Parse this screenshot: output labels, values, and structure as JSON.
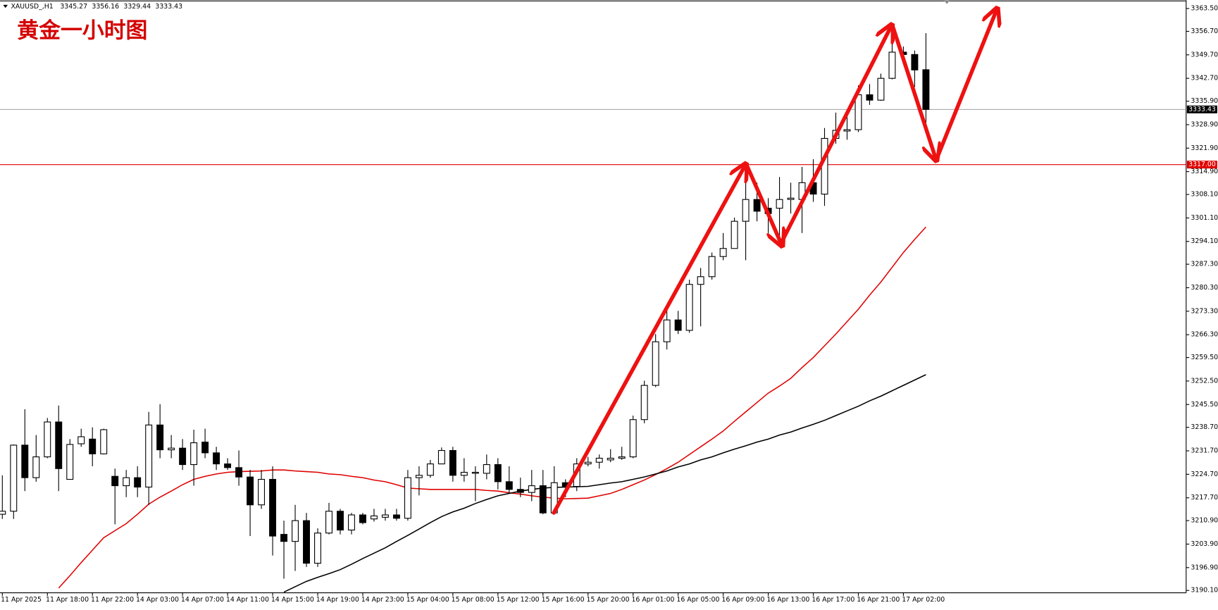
{
  "chart_data": {
    "type": "candlestick",
    "title": "黄金一小时图",
    "symbol": "XAUUSD_,H1",
    "up_color": "#ffffff",
    "down_color": "#000000",
    "grid": false,
    "categories": [
      "11 Apr 2025",
      null,
      null,
      null,
      "11 Apr 18:00",
      null,
      null,
      null,
      "11 Apr 22:00",
      null,
      null,
      null,
      "14 Apr 03:00",
      null,
      null,
      null,
      "14 Apr 07:00",
      null,
      null,
      null,
      "14 Apr 11:00",
      null,
      null,
      null,
      "14 Apr 15:00",
      null,
      null,
      null,
      "14 Apr 19:00",
      null,
      null,
      null,
      "14 Apr 23:00",
      null,
      null,
      null,
      "15 Apr 04:00",
      null,
      null,
      null,
      "15 Apr 08:00",
      null,
      null,
      null,
      "15 Apr 12:00",
      null,
      null,
      null,
      "15 Apr 16:00",
      null,
      null,
      null,
      "15 Apr 20:00",
      null,
      null,
      null,
      "16 Apr 01:00",
      null,
      null,
      null,
      "16 Apr 05:00",
      null,
      null,
      null,
      "16 Apr 09:00",
      null,
      null,
      null,
      "16 Apr 13:00",
      null,
      null,
      null,
      "16 Apr 17:00",
      null,
      null,
      null,
      "16 Apr 21:00",
      null,
      null,
      null,
      "17 Apr 02:00",
      null,
      null
    ],
    "open": [
      3212.8,
      3213.7,
      3233.4,
      3223.7,
      3229.9,
      3240.3,
      3223.2,
      3233.8,
      3235.2,
      3230.8,
      3224.1,
      3221.3,
      3223.7,
      3220.9,
      3239.4,
      3232.0,
      3232.5,
      3227.6,
      3234.3,
      3231.1,
      3227.8,
      3226.7,
      3223.9,
      3215.6,
      3223.2,
      3206.8,
      3204.7,
      3210.9,
      3198.2,
      3207.2,
      3213.7,
      3208.1,
      3212.6,
      3211.4,
      3211.9,
      3212.6,
      3211.6,
      3223.7,
      3224.4,
      3227.8,
      3231.8,
      3224.4,
      3225.0,
      3225.0,
      3227.6,
      3222.5,
      3220.2,
      3219.3,
      3221.3,
      3213.2,
      3222.2,
      3221.1,
      3227.8,
      3228.3,
      3229.0,
      3229.5,
      3229.9,
      3241.0,
      3251.2,
      3264.2,
      3270.7,
      3267.6,
      3281.3,
      3283.6,
      3289.6,
      3292.0,
      3300.1,
      3306.6,
      3304.0,
      3304.0,
      3306.6,
      3306.6,
      3311.6,
      3308.2,
      3324.8,
      3327.0,
      3327.4,
      3337.8,
      3336.2,
      3342.7,
      3350.5,
      3349.8,
      3345.27
    ],
    "high": [
      3224.4,
      3233.6,
      3244.1,
      3236.4,
      3241.5,
      3245.2,
      3235.2,
      3238.3,
      3238.7,
      3238.3,
      3226.4,
      3226.0,
      3227.1,
      3243.3,
      3245.6,
      3236.4,
      3235.2,
      3238.0,
      3238.3,
      3232.9,
      3229.5,
      3231.8,
      3226.0,
      3226.0,
      3227.1,
      3210.9,
      3215.6,
      3213.2,
      3208.6,
      3216.2,
      3214.4,
      3213.2,
      3213.2,
      3214.4,
      3214.4,
      3214.4,
      3226.0,
      3227.1,
      3229.0,
      3232.7,
      3232.9,
      3229.5,
      3227.1,
      3230.6,
      3229.5,
      3227.1,
      3223.7,
      3226.0,
      3226.0,
      3227.1,
      3223.2,
      3229.5,
      3229.9,
      3230.6,
      3232.2,
      3232.9,
      3242.2,
      3252.6,
      3266.5,
      3273.4,
      3273.4,
      3282.7,
      3286.2,
      3290.8,
      3296.6,
      3301.2,
      3312.8,
      3311.6,
      3307.0,
      3313.3,
      3311.6,
      3316.3,
      3318.6,
      3327.9,
      3332.5,
      3331.4,
      3340.6,
      3341.0,
      3344.1,
      3355.6,
      3352.2,
      3351.0,
      3356.16
    ],
    "low": [
      3211.4,
      3211.4,
      3219.7,
      3222.5,
      3229.5,
      3219.7,
      3223.2,
      3232.9,
      3227.1,
      3230.6,
      3209.8,
      3217.9,
      3217.9,
      3215.6,
      3229.5,
      3229.5,
      3226.0,
      3221.3,
      3229.5,
      3226.0,
      3226.0,
      3221.3,
      3206.3,
      3214.4,
      3200.5,
      3193.6,
      3195.9,
      3197.1,
      3197.1,
      3206.8,
      3206.8,
      3206.8,
      3209.8,
      3210.6,
      3210.9,
      3210.9,
      3210.9,
      3218.4,
      3223.7,
      3227.8,
      3222.5,
      3222.5,
      3216.7,
      3223.2,
      3220.2,
      3219.0,
      3217.9,
      3216.7,
      3212.8,
      3213.0,
      3217.9,
      3219.7,
      3227.1,
      3226.4,
      3228.3,
      3229.0,
      3229.5,
      3239.9,
      3250.7,
      3261.9,
      3266.5,
      3266.9,
      3268.8,
      3282.7,
      3288.5,
      3292.0,
      3288.5,
      3300.1,
      3296.6,
      3294.3,
      3302.4,
      3296.6,
      3305.9,
      3304.7,
      3323.2,
      3324.4,
      3326.7,
      3334.8,
      3336.0,
      3342.4,
      3349.4,
      3340.1,
      3329.44
    ],
    "close": [
      3213.7,
      3233.4,
      3223.7,
      3229.9,
      3240.3,
      3226.4,
      3233.6,
      3235.9,
      3230.8,
      3238.0,
      3221.3,
      3223.7,
      3220.9,
      3239.4,
      3232.0,
      3232.5,
      3227.6,
      3234.1,
      3231.1,
      3227.8,
      3226.7,
      3223.9,
      3215.6,
      3223.2,
      3206.3,
      3204.7,
      3210.9,
      3198.2,
      3207.2,
      3213.7,
      3208.1,
      3212.6,
      3210.3,
      3212.3,
      3212.6,
      3211.6,
      3223.7,
      3224.4,
      3227.8,
      3231.8,
      3224.4,
      3225.3,
      3225.3,
      3227.6,
      3222.5,
      3220.2,
      3219.3,
      3221.3,
      3213.2,
      3222.2,
      3221.1,
      3227.8,
      3228.3,
      3229.5,
      3229.5,
      3229.9,
      3241.0,
      3251.2,
      3264.2,
      3270.7,
      3267.6,
      3281.3,
      3283.6,
      3289.6,
      3292.0,
      3300.1,
      3306.6,
      3303.1,
      3302.4,
      3306.6,
      3307.0,
      3311.6,
      3308.2,
      3324.8,
      3327.2,
      3327.4,
      3337.8,
      3336.2,
      3342.7,
      3350.5,
      3349.8,
      3345.2,
      3333.43
    ],
    "lines": [
      {
        "color": "#e00000",
        "values": [
          null,
          null,
          null,
          null,
          null,
          3190.8,
          3194.5,
          3198.4,
          3202.1,
          3205.8,
          3207.9,
          3210.0,
          3212.8,
          3215.8,
          3217.9,
          3219.7,
          3221.6,
          3223.2,
          3224.1,
          3224.8,
          3225.3,
          3225.5,
          3225.6,
          3225.7,
          3226.0,
          3226.0,
          3225.7,
          3225.5,
          3225.3,
          3224.8,
          3224.6,
          3224.1,
          3223.7,
          3223.0,
          3222.5,
          3221.6,
          3220.6,
          3220.4,
          3220.2,
          3220.2,
          3220.2,
          3220.2,
          3220.2,
          3219.9,
          3219.7,
          3219.2,
          3218.8,
          3218.3,
          3217.9,
          3217.6,
          3217.4,
          3217.5,
          3217.6,
          3218.3,
          3219.0,
          3220.2,
          3221.6,
          3223.0,
          3224.6,
          3226.4,
          3228.3,
          3230.6,
          3232.9,
          3235.2,
          3237.6,
          3240.5,
          3243.3,
          3246.1,
          3248.9,
          3251.0,
          3253.3,
          3256.5,
          3259.5,
          3263.0,
          3266.5,
          3270.2,
          3273.9,
          3278.1,
          3282.0,
          3286.4,
          3290.8,
          3294.7,
          3298.4
        ]
      },
      {
        "color": "#000000",
        "values": [
          null,
          null,
          null,
          null,
          null,
          null,
          null,
          null,
          null,
          null,
          null,
          null,
          null,
          null,
          null,
          null,
          null,
          null,
          null,
          null,
          null,
          null,
          null,
          null,
          null,
          3189.6,
          3191.2,
          3192.8,
          3194.0,
          3195.1,
          3196.3,
          3197.9,
          3199.6,
          3201.2,
          3202.8,
          3204.7,
          3206.5,
          3208.4,
          3210.3,
          3212.1,
          3213.5,
          3214.6,
          3216.0,
          3217.2,
          3218.3,
          3219.0,
          3219.7,
          3220.2,
          3220.6,
          3220.8,
          3220.9,
          3221.0,
          3221.1,
          3221.6,
          3222.1,
          3222.5,
          3223.2,
          3223.9,
          3224.8,
          3225.7,
          3226.9,
          3227.8,
          3229.0,
          3229.9,
          3231.1,
          3232.2,
          3233.2,
          3234.3,
          3235.2,
          3236.4,
          3237.3,
          3238.5,
          3239.6,
          3240.8,
          3242.2,
          3243.6,
          3245.0,
          3246.6,
          3248.0,
          3249.6,
          3251.2,
          3252.8,
          3254.4
        ]
      }
    ],
    "levels": [
      {
        "value": 3333.43,
        "color": "#a0a0a0",
        "box_color": "#000000"
      },
      {
        "value": 3317,
        "label": "3317.00",
        "color": "#e00000",
        "box_color": "#e00000"
      }
    ],
    "ylim": [
      3189.4,
      3366.0
    ],
    "yticks": [
      {
        "value": 3363.5,
        "label": "3363.50"
      },
      {
        "value": 3356.7,
        "label": "3356.70"
      },
      {
        "value": 3349.7,
        "label": "3349.70"
      },
      {
        "value": 3342.7,
        "label": "3342.70"
      },
      {
        "value": 3335.9,
        "label": "3335.90"
      },
      {
        "value": 3328.9,
        "label": "3328.90"
      },
      {
        "value": 3321.9,
        "label": "3321.90"
      },
      {
        "value": 3314.9,
        "label": "3314.90"
      },
      {
        "value": 3308.1,
        "label": "3308.10"
      },
      {
        "value": 3301.1,
        "label": "3301.10"
      },
      {
        "value": 3294.1,
        "label": "3294.10"
      },
      {
        "value": 3287.3,
        "label": "3287.30"
      },
      {
        "value": 3280.3,
        "label": "3280.30"
      },
      {
        "value": 3273.3,
        "label": "3273.30"
      },
      {
        "value": 3266.3,
        "label": "3266.30"
      },
      {
        "value": 3259.5,
        "label": "3259.50"
      },
      {
        "value": 3252.5,
        "label": "3252.50"
      },
      {
        "value": 3245.5,
        "label": "3245.50"
      },
      {
        "value": 3238.7,
        "label": "3238.70"
      },
      {
        "value": 3231.7,
        "label": "3231.70"
      },
      {
        "value": 3224.7,
        "label": "3224.70"
      },
      {
        "value": 3217.7,
        "label": "3217.70"
      },
      {
        "value": 3210.9,
        "label": "3210.90"
      },
      {
        "value": 3203.9,
        "label": "3203.90"
      },
      {
        "value": 3196.9,
        "label": "3196.90"
      },
      {
        "value": 3190.1,
        "label": "3190.10"
      }
    ]
  }
}
